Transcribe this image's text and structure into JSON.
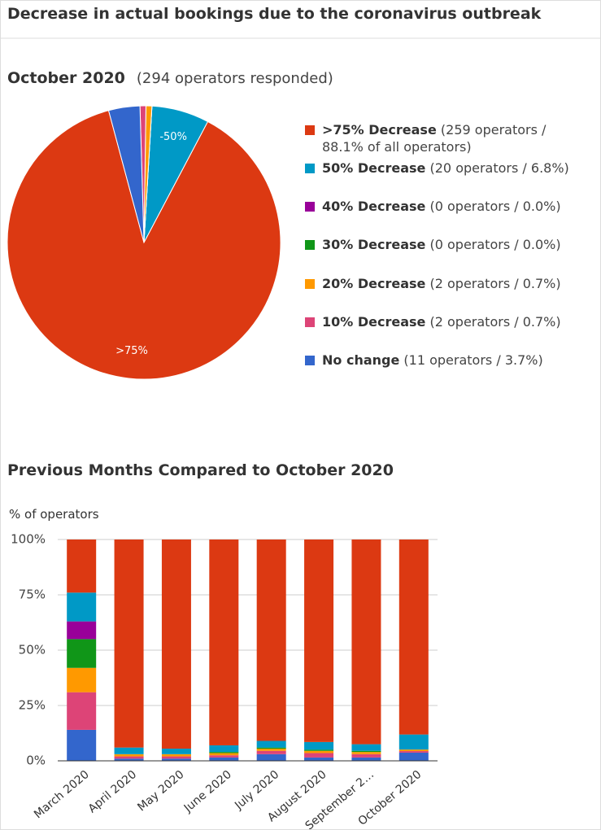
{
  "page_title": "Decrease in actual bookings due to the coronavirus outbreak",
  "chart_data": [
    {
      "type": "pie",
      "title": "October 2020",
      "subtitle": "(294 operators responded)",
      "slices": [
        {
          "name": ">75% Decrease",
          "detail": "(259 operators / 88.1% of all operators)",
          "value": 88.1,
          "color": "#dc3912",
          "label": ">75%"
        },
        {
          "name": "50% Decrease",
          "detail": "(20 operators / 6.8%)",
          "value": 6.8,
          "color": "#0099c6",
          "label": "-50%"
        },
        {
          "name": "40% Decrease",
          "detail": "(0 operators / 0.0%)",
          "value": 0.0,
          "color": "#990099"
        },
        {
          "name": "30% Decrease",
          "detail": "(0 operators / 0.0%)",
          "value": 0.0,
          "color": "#109618"
        },
        {
          "name": "20% Decrease",
          "detail": "(2 operators / 0.7%)",
          "value": 0.7,
          "color": "#ff9900"
        },
        {
          "name": "10% Decrease",
          "detail": "(2 operators / 0.7%)",
          "value": 0.7,
          "color": "#dd4477"
        },
        {
          "name": "No change",
          "detail": "(11 operators / 3.7%)",
          "value": 3.7,
          "color": "#3366cc"
        }
      ]
    },
    {
      "type": "bar",
      "stacked": true,
      "title": "Previous Months Compared to October 2020",
      "y_label": "% of operators",
      "categories": [
        "March 2020",
        "April 2020",
        "May 2020",
        "June 2020",
        "July 2020",
        "August 2020",
        "September 2…",
        "October 2020"
      ],
      "series": [
        {
          "color": "#3366cc",
          "values": [
            14,
            1,
            1,
            1.5,
            3,
            1.5,
            1.5,
            3.7
          ]
        },
        {
          "color": "#dd4477",
          "values": [
            17,
            1,
            1,
            1,
            1.5,
            2,
            1.5,
            0.7
          ]
        },
        {
          "color": "#ff9900",
          "values": [
            11,
            1,
            1,
            1,
            1,
            1,
            1,
            0.7
          ]
        },
        {
          "color": "#109618",
          "values": [
            13,
            0,
            0,
            0.5,
            0.5,
            0.5,
            0.5,
            0
          ]
        },
        {
          "color": "#990099",
          "values": [
            8,
            0,
            0,
            0,
            0,
            0,
            0,
            0
          ]
        },
        {
          "color": "#0099c6",
          "values": [
            13,
            3,
            2.5,
            3,
            3,
            3.5,
            3,
            6.8
          ]
        },
        {
          "color": "#dc3912",
          "values": [
            24,
            94,
            94.5,
            93,
            91,
            91.5,
            92.5,
            88.1
          ]
        }
      ],
      "ylim": [
        0,
        100
      ],
      "yticks": [
        {
          "value": 0,
          "label": "0%"
        },
        {
          "value": 25,
          "label": "25%"
        },
        {
          "value": 50,
          "label": "50%"
        },
        {
          "value": 75,
          "label": "75%"
        },
        {
          "value": 100,
          "label": "100%"
        }
      ],
      "grid": true
    }
  ]
}
